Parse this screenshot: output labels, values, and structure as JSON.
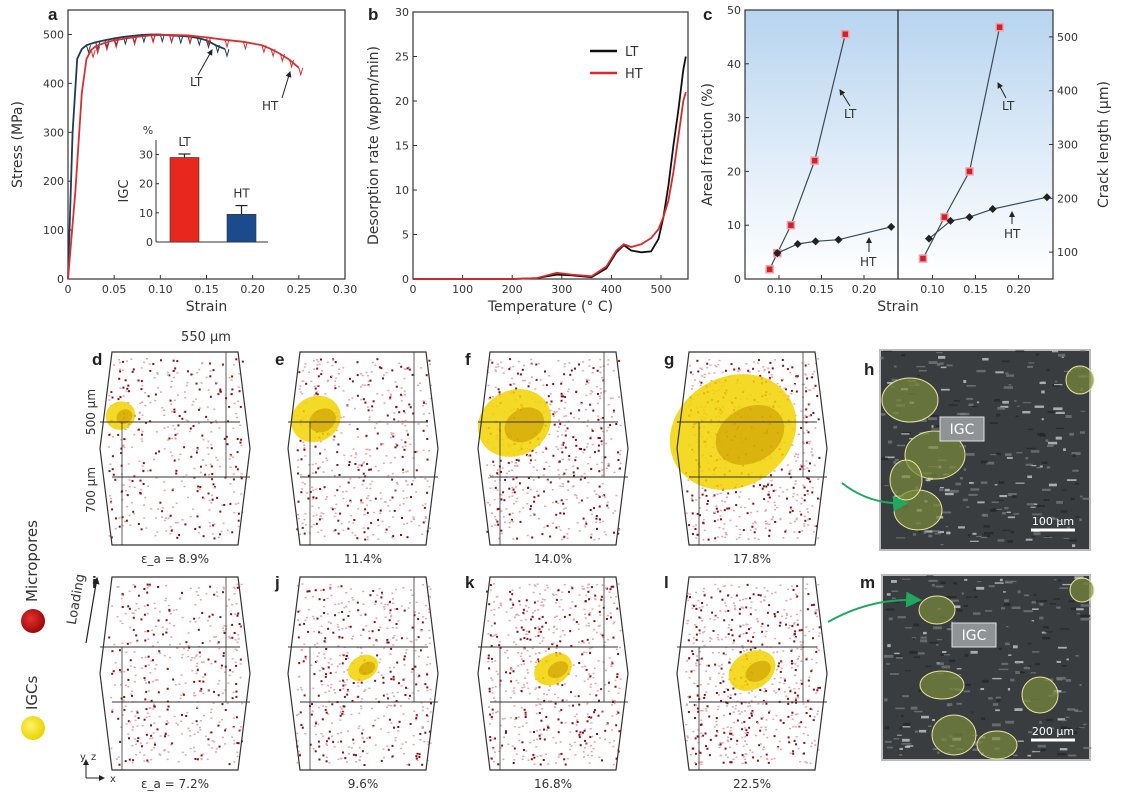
{
  "chart_data": [
    {
      "panel": "a",
      "type": "line",
      "xlabel": "Strain",
      "ylabel": "Stress (MPa)",
      "xlim": [
        0,
        0.3
      ],
      "ylim": [
        0,
        550
      ],
      "xticks": [
        "0",
        "0.05",
        "0.10",
        "0.15",
        "0.20",
        "0.25",
        "0.30"
      ],
      "yticks": [
        "0",
        "100",
        "200",
        "300",
        "400",
        "500"
      ],
      "series": [
        {
          "name": "LT",
          "color": "#1f3a5a",
          "x": [
            0,
            0.005,
            0.01,
            0.015,
            0.02,
            0.03,
            0.04,
            0.05,
            0.06,
            0.07,
            0.08,
            0.09,
            0.1,
            0.11,
            0.12,
            0.13,
            0.14,
            0.15,
            0.16,
            0.17
          ],
          "y": [
            0,
            300,
            450,
            470,
            478,
            484,
            488,
            492,
            495,
            497,
            499,
            500,
            500,
            498,
            497,
            496,
            493,
            488,
            478,
            470
          ]
        },
        {
          "name": "HT",
          "color": "#d83030",
          "x": [
            0,
            0.008,
            0.015,
            0.02,
            0.025,
            0.03,
            0.04,
            0.05,
            0.07,
            0.09,
            0.11,
            0.13,
            0.15,
            0.17,
            0.19,
            0.21,
            0.22,
            0.23,
            0.24,
            0.25
          ],
          "y": [
            0,
            180,
            380,
            450,
            468,
            476,
            483,
            488,
            494,
            498,
            499,
            498,
            494,
            489,
            485,
            478,
            470,
            460,
            448,
            432
          ]
        }
      ],
      "annotations": [
        "LT",
        "HT"
      ],
      "inset": {
        "type": "bar",
        "ylabel": "IGC",
        "unit": "%",
        "ylim": [
          0,
          35
        ],
        "yticks": [
          "0",
          "10",
          "20",
          "30"
        ],
        "categories": [
          "LT",
          "HT"
        ],
        "values": [
          29,
          9.5
        ],
        "errors": [
          1.2,
          3
        ],
        "colors": [
          "#e8281e",
          "#1b4b8c"
        ]
      }
    },
    {
      "panel": "b",
      "type": "line",
      "xlabel": "Temperature (° C)",
      "ylabel": "Desorption rate (wppm/min)",
      "xlim": [
        0,
        550
      ],
      "ylim": [
        0,
        30
      ],
      "xticks": [
        "0",
        "100",
        "200",
        "300",
        "400",
        "500"
      ],
      "yticks": [
        "0",
        "5",
        "10",
        "15",
        "20",
        "25",
        "30"
      ],
      "legend_position": "top-right",
      "series": [
        {
          "name": "LT",
          "color": "#111111",
          "x": [
            0,
            100,
            200,
            250,
            290,
            320,
            360,
            390,
            410,
            425,
            440,
            460,
            480,
            495,
            505,
            515,
            525,
            535,
            545,
            550
          ],
          "y": [
            0,
            0,
            0,
            0.1,
            0.5,
            0.4,
            0.2,
            1.2,
            3,
            3.8,
            3.2,
            3,
            3.1,
            4.5,
            7,
            10.5,
            15,
            19,
            23.5,
            25
          ]
        },
        {
          "name": "HT",
          "color": "#d82a2a",
          "x": [
            0,
            100,
            200,
            250,
            290,
            320,
            360,
            390,
            410,
            425,
            440,
            460,
            480,
            495,
            505,
            515,
            525,
            535,
            545,
            550
          ],
          "y": [
            0,
            0,
            0,
            0.1,
            0.7,
            0.5,
            0.3,
            1.4,
            3.2,
            3.9,
            3.6,
            3.9,
            4.6,
            5.6,
            7,
            8.8,
            12,
            16,
            20,
            21
          ]
        }
      ]
    },
    {
      "panel": "c",
      "type": "line",
      "xlabel": "Strain",
      "ylabel_left": "Areal fraction (%)",
      "ylabel_right": "Crack length (μm)",
      "left": {
        "xlim": [
          0.06,
          0.24
        ],
        "ylim": [
          0,
          50
        ],
        "xticks": [
          "0.10",
          "0.15",
          "0.20"
        ],
        "yticks": [
          "0",
          "10",
          "20",
          "30",
          "40",
          "50"
        ],
        "series": [
          {
            "name": "LT",
            "x": [
              0.089,
              0.098,
              0.114,
              0.142,
              0.178
            ],
            "y": [
              1.8,
              4.8,
              10,
              22,
              45.5
            ]
          },
          {
            "name": "HT",
            "x": [
              0.098,
              0.122,
              0.143,
              0.17,
              0.232
            ],
            "y": [
              4.8,
              6.5,
              7,
              7.3,
              9.7
            ]
          }
        ],
        "annotations": [
          "LT",
          "HT"
        ]
      },
      "right": {
        "xlim": [
          0.06,
          0.24
        ],
        "ylim": [
          50,
          550
        ],
        "xticks": [
          "0.10",
          "0.15",
          "0.20"
        ],
        "yticks": [
          "100",
          "200",
          "300",
          "400",
          "500"
        ],
        "series": [
          {
            "name": "LT",
            "x": [
              0.089,
              0.114,
              0.143,
              0.178
            ],
            "y": [
              88,
              165,
              250,
              518
            ]
          },
          {
            "name": "HT",
            "x": [
              0.096,
              0.121,
              0.143,
              0.17,
              0.233
            ],
            "y": [
              125,
              158,
              165,
              180,
              202
            ]
          }
        ],
        "annotations": [
          "LT",
          "HT"
        ]
      }
    }
  ],
  "panel_labels": [
    "a",
    "b",
    "c",
    "d",
    "e",
    "f",
    "g",
    "h",
    "i",
    "j",
    "k",
    "l",
    "m"
  ],
  "volumes": {
    "dimensions": {
      "x": "550 μm",
      "y": "500 μm",
      "z": "700 μm"
    },
    "top_row": [
      {
        "label": "d",
        "strain": "ε_a = 8.9%",
        "igc": 0.08
      },
      {
        "label": "e",
        "strain": "11.4%",
        "igc": 0.25
      },
      {
        "label": "f",
        "strain": "14.0%",
        "igc": 0.45
      },
      {
        "label": "g",
        "strain": "17.8%",
        "igc": 0.9
      }
    ],
    "bottom_row": [
      {
        "label": "i",
        "strain": "ε_a = 7.2%",
        "igc": 0
      },
      {
        "label": "j",
        "strain": "9.6%",
        "igc": 0.2
      },
      {
        "label": "k",
        "strain": "16.8%",
        "igc": 0.3
      },
      {
        "label": "l",
        "strain": "22.5%",
        "igc": 0.42
      }
    ],
    "loading_label": "Loading",
    "axes_labels": {
      "x": "x",
      "y": "y",
      "z": "z"
    }
  },
  "legend": {
    "micropores": {
      "label": "Micropores",
      "color": "#c8141e"
    },
    "igcs": {
      "label": "IGCs",
      "color": "#f2e20e"
    }
  },
  "micrographs": [
    {
      "label": "h",
      "tag": "IGC",
      "scale_bar": "100 μm"
    },
    {
      "label": "m",
      "tag": "IGC",
      "scale_bar": "200 μm"
    }
  ],
  "colors": {
    "arrow": "#1fa860",
    "panel_c_bg_top": "#bcd8f0",
    "axis": "#333333"
  }
}
